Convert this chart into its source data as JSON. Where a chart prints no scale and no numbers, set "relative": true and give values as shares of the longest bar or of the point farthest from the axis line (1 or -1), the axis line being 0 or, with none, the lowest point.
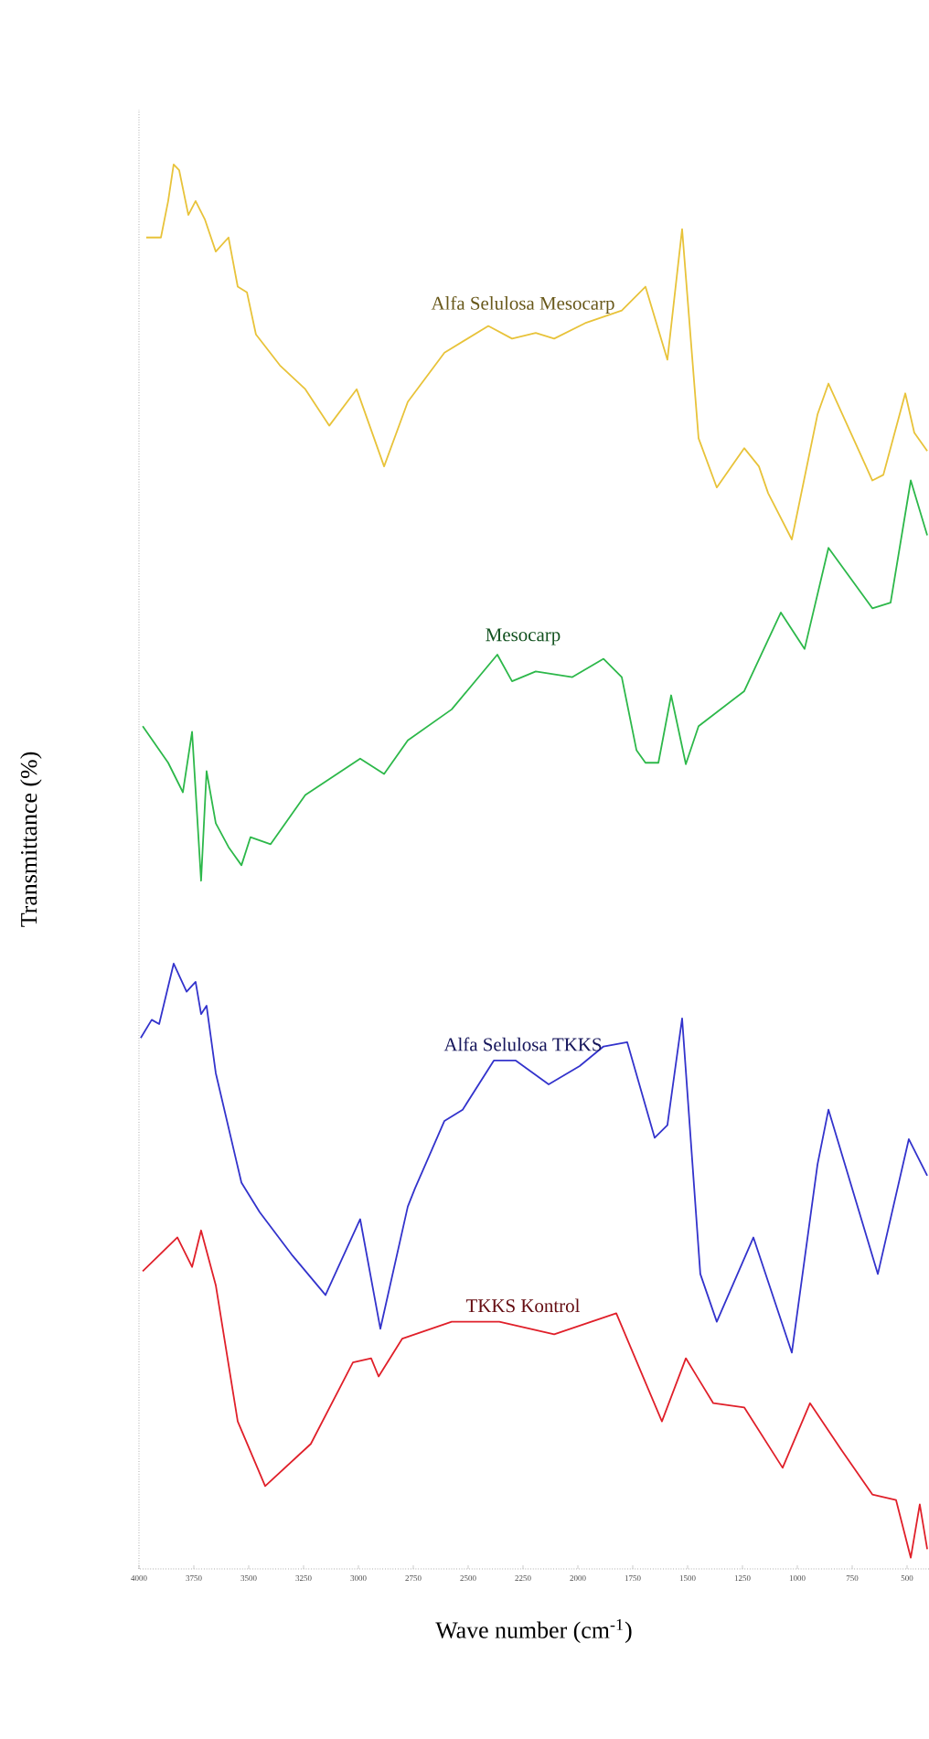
{
  "chart_data": {
    "type": "line",
    "relative": true,
    "xlabel": "Wave number (cm$^{-1}$)",
    "ylabel": "Transmittance  (%)",
    "xlim": [
      4000,
      400
    ],
    "xticks": [
      4000,
      3750,
      3500,
      3250,
      3000,
      2750,
      2500,
      2250,
      2000,
      1750,
      1500,
      1250,
      1000,
      750,
      500
    ],
    "marker": "none",
    "line_style": "solid",
    "series": [
      {
        "name": "Alfa Selulosa Mesocarp",
        "color": "#e8c33a",
        "x": [
          3967,
          3900,
          3867,
          3842,
          3817,
          3775,
          3742,
          3700,
          3650,
          3592,
          3550,
          3508,
          3467,
          3358,
          3242,
          3133,
          3008,
          2883,
          2775,
          2608,
          2408,
          2300,
          2192,
          2108,
          1967,
          1800,
          1692,
          1592,
          1525,
          1450,
          1367,
          1242,
          1175,
          1133,
          1025,
          908,
          858,
          658,
          608,
          508,
          467,
          408
        ],
        "values": [
          0.948,
          0.948,
          0.974,
          1.0,
          0.996,
          0.964,
          0.974,
          0.961,
          0.938,
          0.948,
          0.913,
          0.909,
          0.879,
          0.857,
          0.84,
          0.814,
          0.84,
          0.785,
          0.831,
          0.866,
          0.885,
          0.876,
          0.88,
          0.876,
          0.887,
          0.896,
          0.913,
          0.861,
          0.954,
          0.805,
          0.77,
          0.798,
          0.785,
          0.766,
          0.733,
          0.822,
          0.844,
          0.775,
          0.779,
          0.837,
          0.809,
          0.796
        ]
      },
      {
        "name": "Mesocarp",
        "color": "#2db84a",
        "x": [
          3983,
          3867,
          3800,
          3758,
          3717,
          3692,
          3650,
          3592,
          3533,
          3492,
          3400,
          3242,
          2992,
          2883,
          2775,
          2575,
          2367,
          2300,
          2192,
          2025,
          1883,
          1800,
          1733,
          1692,
          1633,
          1575,
          1508,
          1450,
          1242,
          1075,
          967,
          858,
          658,
          575,
          483,
          408
        ],
        "values": [
          0.6,
          0.574,
          0.553,
          0.596,
          0.49,
          0.568,
          0.531,
          0.514,
          0.501,
          0.521,
          0.516,
          0.551,
          0.577,
          0.566,
          0.59,
          0.612,
          0.651,
          0.632,
          0.639,
          0.635,
          0.648,
          0.635,
          0.583,
          0.574,
          0.574,
          0.622,
          0.573,
          0.6,
          0.625,
          0.681,
          0.655,
          0.727,
          0.684,
          0.688,
          0.775,
          0.736
        ]
      },
      {
        "name": "Alfa Selulosa TKKS",
        "color": "#3333cc",
        "x": [
          3992,
          3942,
          3908,
          3842,
          3783,
          3742,
          3717,
          3692,
          3650,
          3533,
          3450,
          3300,
          3150,
          2992,
          2900,
          2775,
          2742,
          2608,
          2525,
          2383,
          2283,
          2133,
          1992,
          1883,
          1775,
          1650,
          1592,
          1525,
          1442,
          1367,
          1200,
          1025,
          908,
          858,
          633,
          492,
          408
        ],
        "values": [
          0.378,
          0.391,
          0.388,
          0.431,
          0.411,
          0.418,
          0.395,
          0.401,
          0.353,
          0.275,
          0.254,
          0.223,
          0.195,
          0.249,
          0.171,
          0.258,
          0.271,
          0.319,
          0.327,
          0.362,
          0.362,
          0.345,
          0.358,
          0.372,
          0.375,
          0.307,
          0.316,
          0.392,
          0.21,
          0.176,
          0.236,
          0.154,
          0.288,
          0.327,
          0.21,
          0.306,
          0.28
        ]
      },
      {
        "name": "TKKS Kontrol",
        "color": "#e0202a",
        "x": [
          3983,
          3825,
          3758,
          3717,
          3650,
          3550,
          3425,
          3217,
          3025,
          2942,
          2908,
          2800,
          2575,
          2358,
          2108,
          1825,
          1617,
          1508,
          1383,
          1242,
          1067,
          942,
          800,
          658,
          550,
          483,
          442,
          408
        ],
        "values": [
          0.212,
          0.236,
          0.215,
          0.241,
          0.202,
          0.105,
          0.059,
          0.089,
          0.147,
          0.15,
          0.137,
          0.164,
          0.176,
          0.176,
          0.167,
          0.182,
          0.105,
          0.15,
          0.118,
          0.115,
          0.072,
          0.118,
          0.085,
          0.053,
          0.049,
          0.008,
          0.046,
          0.014
        ]
      }
    ]
  }
}
